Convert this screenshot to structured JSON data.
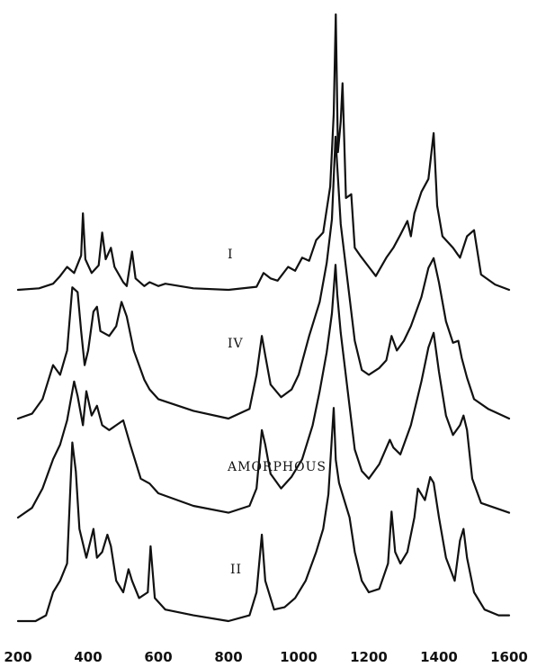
{
  "chart_data": {
    "type": "line",
    "xlim": [
      200,
      1600
    ],
    "xticks": [
      200,
      400,
      600,
      800,
      1000,
      1200,
      1400,
      1600
    ],
    "grid": false,
    "series": [
      {
        "name": "I",
        "label": "I",
        "points": [
          [
            200,
            0.0
          ],
          [
            260,
            0.02
          ],
          [
            300,
            0.08
          ],
          [
            320,
            0.18
          ],
          [
            340,
            0.3
          ],
          [
            360,
            0.22
          ],
          [
            380,
            0.45
          ],
          [
            385,
            1.0
          ],
          [
            392,
            0.4
          ],
          [
            410,
            0.22
          ],
          [
            430,
            0.32
          ],
          [
            440,
            0.75
          ],
          [
            450,
            0.4
          ],
          [
            465,
            0.55
          ],
          [
            475,
            0.3
          ],
          [
            500,
            0.1
          ],
          [
            510,
            0.05
          ],
          [
            525,
            0.5
          ],
          [
            535,
            0.15
          ],
          [
            560,
            0.05
          ],
          [
            575,
            0.1
          ],
          [
            600,
            0.05
          ],
          [
            620,
            0.08
          ],
          [
            700,
            0.02
          ],
          [
            800,
            0.0
          ],
          [
            880,
            0.04
          ],
          [
            900,
            0.22
          ],
          [
            920,
            0.15
          ],
          [
            940,
            0.12
          ],
          [
            970,
            0.3
          ],
          [
            990,
            0.25
          ],
          [
            1010,
            0.42
          ],
          [
            1030,
            0.38
          ],
          [
            1050,
            0.65
          ],
          [
            1070,
            0.75
          ],
          [
            1090,
            1.35
          ],
          [
            1100,
            2.3
          ],
          [
            1106,
            3.6
          ],
          [
            1112,
            1.8
          ],
          [
            1120,
            2.2
          ],
          [
            1125,
            2.7
          ],
          [
            1135,
            1.2
          ],
          [
            1150,
            1.25
          ],
          [
            1160,
            0.55
          ],
          [
            1175,
            0.45
          ],
          [
            1200,
            0.3
          ],
          [
            1220,
            0.18
          ],
          [
            1250,
            0.42
          ],
          [
            1270,
            0.55
          ],
          [
            1290,
            0.72
          ],
          [
            1310,
            0.9
          ],
          [
            1320,
            0.7
          ],
          [
            1330,
            1.0
          ],
          [
            1350,
            1.28
          ],
          [
            1370,
            1.45
          ],
          [
            1385,
            2.05
          ],
          [
            1395,
            1.1
          ],
          [
            1410,
            0.7
          ],
          [
            1440,
            0.55
          ],
          [
            1460,
            0.42
          ],
          [
            1480,
            0.7
          ],
          [
            1500,
            0.78
          ],
          [
            1520,
            0.2
          ],
          [
            1560,
            0.07
          ],
          [
            1600,
            0.0
          ]
        ]
      },
      {
        "name": "IV",
        "label": "IV",
        "points": [
          [
            200,
            0.0
          ],
          [
            240,
            0.05
          ],
          [
            270,
            0.2
          ],
          [
            300,
            0.55
          ],
          [
            320,
            0.45
          ],
          [
            340,
            0.7
          ],
          [
            355,
            1.35
          ],
          [
            370,
            1.3
          ],
          [
            380,
            0.9
          ],
          [
            390,
            0.55
          ],
          [
            400,
            0.7
          ],
          [
            415,
            1.1
          ],
          [
            425,
            1.15
          ],
          [
            435,
            0.9
          ],
          [
            460,
            0.85
          ],
          [
            480,
            0.95
          ],
          [
            495,
            1.2
          ],
          [
            510,
            1.05
          ],
          [
            530,
            0.7
          ],
          [
            560,
            0.4
          ],
          [
            575,
            0.3
          ],
          [
            600,
            0.2
          ],
          [
            700,
            0.08
          ],
          [
            800,
            0.0
          ],
          [
            860,
            0.1
          ],
          [
            880,
            0.45
          ],
          [
            895,
            0.85
          ],
          [
            905,
            0.65
          ],
          [
            920,
            0.35
          ],
          [
            950,
            0.22
          ],
          [
            980,
            0.3
          ],
          [
            1000,
            0.45
          ],
          [
            1030,
            0.85
          ],
          [
            1060,
            1.2
          ],
          [
            1080,
            1.6
          ],
          [
            1095,
            2.05
          ],
          [
            1105,
            2.9
          ],
          [
            1110,
            2.6
          ],
          [
            1120,
            2.0
          ],
          [
            1140,
            1.4
          ],
          [
            1160,
            0.8
          ],
          [
            1180,
            0.5
          ],
          [
            1200,
            0.45
          ],
          [
            1230,
            0.52
          ],
          [
            1250,
            0.6
          ],
          [
            1265,
            0.85
          ],
          [
            1280,
            0.7
          ],
          [
            1300,
            0.8
          ],
          [
            1320,
            0.95
          ],
          [
            1350,
            1.25
          ],
          [
            1370,
            1.55
          ],
          [
            1385,
            1.65
          ],
          [
            1400,
            1.4
          ],
          [
            1420,
            1.0
          ],
          [
            1440,
            0.78
          ],
          [
            1455,
            0.8
          ],
          [
            1465,
            0.62
          ],
          [
            1480,
            0.42
          ],
          [
            1500,
            0.2
          ],
          [
            1540,
            0.1
          ],
          [
            1600,
            0.0
          ]
        ]
      },
      {
        "name": "AMORPHOUS",
        "label": "AMORPHOUS",
        "points": [
          [
            200,
            0.0
          ],
          [
            240,
            0.1
          ],
          [
            270,
            0.3
          ],
          [
            300,
            0.6
          ],
          [
            320,
            0.75
          ],
          [
            340,
            1.0
          ],
          [
            360,
            1.4
          ],
          [
            370,
            1.25
          ],
          [
            385,
            0.95
          ],
          [
            395,
            1.3
          ],
          [
            410,
            1.05
          ],
          [
            425,
            1.15
          ],
          [
            440,
            0.95
          ],
          [
            460,
            0.9
          ],
          [
            480,
            0.95
          ],
          [
            500,
            1.0
          ],
          [
            520,
            0.75
          ],
          [
            550,
            0.4
          ],
          [
            575,
            0.35
          ],
          [
            600,
            0.25
          ],
          [
            700,
            0.12
          ],
          [
            800,
            0.05
          ],
          [
            860,
            0.12
          ],
          [
            880,
            0.3
          ],
          [
            895,
            0.9
          ],
          [
            905,
            0.75
          ],
          [
            920,
            0.45
          ],
          [
            950,
            0.3
          ],
          [
            980,
            0.42
          ],
          [
            1010,
            0.6
          ],
          [
            1040,
            0.95
          ],
          [
            1060,
            1.3
          ],
          [
            1080,
            1.7
          ],
          [
            1095,
            2.1
          ],
          [
            1105,
            2.6
          ],
          [
            1110,
            2.3
          ],
          [
            1120,
            1.9
          ],
          [
            1140,
            1.3
          ],
          [
            1160,
            0.7
          ],
          [
            1180,
            0.48
          ],
          [
            1200,
            0.4
          ],
          [
            1230,
            0.55
          ],
          [
            1260,
            0.8
          ],
          [
            1270,
            0.72
          ],
          [
            1290,
            0.65
          ],
          [
            1320,
            0.95
          ],
          [
            1350,
            1.4
          ],
          [
            1370,
            1.75
          ],
          [
            1385,
            1.9
          ],
          [
            1400,
            1.5
          ],
          [
            1420,
            1.05
          ],
          [
            1440,
            0.85
          ],
          [
            1460,
            0.95
          ],
          [
            1470,
            1.05
          ],
          [
            1480,
            0.9
          ],
          [
            1495,
            0.4
          ],
          [
            1520,
            0.15
          ],
          [
            1560,
            0.1
          ],
          [
            1600,
            0.05
          ]
        ]
      },
      {
        "name": "II",
        "label": "II",
        "points": [
          [
            200,
            0.0
          ],
          [
            250,
            0.0
          ],
          [
            280,
            0.05
          ],
          [
            300,
            0.25
          ],
          [
            320,
            0.35
          ],
          [
            340,
            0.5
          ],
          [
            355,
            1.55
          ],
          [
            365,
            1.3
          ],
          [
            375,
            0.8
          ],
          [
            395,
            0.55
          ],
          [
            415,
            0.8
          ],
          [
            425,
            0.55
          ],
          [
            440,
            0.6
          ],
          [
            455,
            0.75
          ],
          [
            465,
            0.65
          ],
          [
            480,
            0.35
          ],
          [
            500,
            0.25
          ],
          [
            515,
            0.45
          ],
          [
            525,
            0.35
          ],
          [
            545,
            0.2
          ],
          [
            570,
            0.25
          ],
          [
            578,
            0.65
          ],
          [
            590,
            0.2
          ],
          [
            620,
            0.1
          ],
          [
            700,
            0.05
          ],
          [
            800,
            0.0
          ],
          [
            860,
            0.05
          ],
          [
            880,
            0.25
          ],
          [
            895,
            0.75
          ],
          [
            905,
            0.35
          ],
          [
            930,
            0.1
          ],
          [
            960,
            0.12
          ],
          [
            990,
            0.2
          ],
          [
            1020,
            0.35
          ],
          [
            1050,
            0.6
          ],
          [
            1070,
            0.8
          ],
          [
            1085,
            1.1
          ],
          [
            1095,
            1.6
          ],
          [
            1100,
            1.85
          ],
          [
            1106,
            1.4
          ],
          [
            1115,
            1.2
          ],
          [
            1130,
            1.05
          ],
          [
            1145,
            0.9
          ],
          [
            1160,
            0.6
          ],
          [
            1180,
            0.35
          ],
          [
            1200,
            0.25
          ],
          [
            1230,
            0.28
          ],
          [
            1255,
            0.5
          ],
          [
            1265,
            0.95
          ],
          [
            1275,
            0.6
          ],
          [
            1290,
            0.5
          ],
          [
            1310,
            0.6
          ],
          [
            1330,
            0.9
          ],
          [
            1340,
            1.15
          ],
          [
            1360,
            1.05
          ],
          [
            1375,
            1.25
          ],
          [
            1385,
            1.2
          ],
          [
            1400,
            0.9
          ],
          [
            1420,
            0.55
          ],
          [
            1445,
            0.35
          ],
          [
            1460,
            0.7
          ],
          [
            1470,
            0.8
          ],
          [
            1480,
            0.55
          ],
          [
            1500,
            0.25
          ],
          [
            1530,
            0.1
          ],
          [
            1570,
            0.05
          ],
          [
            1600,
            0.05
          ]
        ]
      }
    ]
  }
}
